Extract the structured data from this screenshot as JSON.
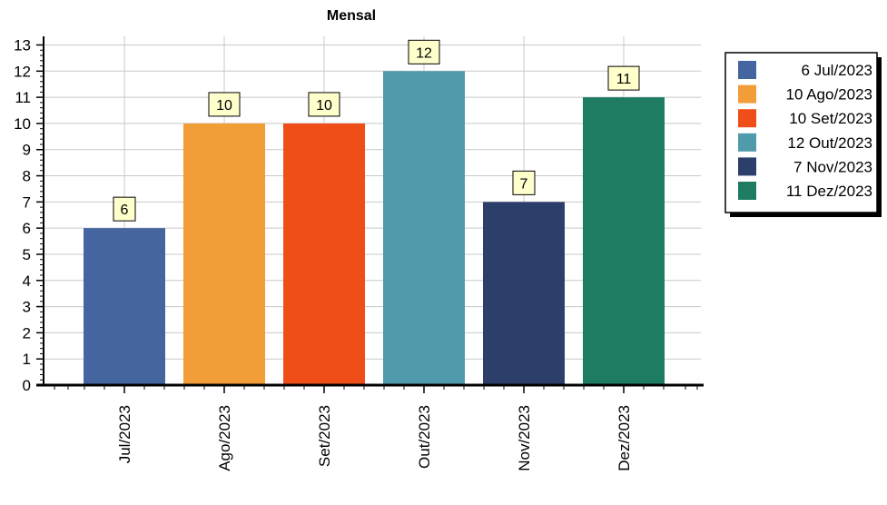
{
  "chart_data": {
    "type": "bar",
    "title": "Mensal",
    "categories": [
      "Jul/2023",
      "Ago/2023",
      "Set/2023",
      "Out/2023",
      "Nov/2023",
      "Dez/2023"
    ],
    "values": [
      6,
      10,
      10,
      12,
      7,
      11
    ],
    "colors": [
      "#4565a0",
      "#f29e38",
      "#f04e18",
      "#4f9bab",
      "#2c3e6a",
      "#1e7c62"
    ],
    "legend": [
      "6 Jul/2023",
      "10 Ago/2023",
      "10 Set/2023",
      "12 Out/2023",
      "7 Nov/2023",
      "11 Dez/2023"
    ],
    "legend_placement": "top-right",
    "ylim": [
      0,
      13
    ],
    "yticks": [
      0,
      1,
      2,
      3,
      4,
      5,
      6,
      7,
      8,
      9,
      10,
      11,
      12,
      13
    ],
    "grid": true,
    "data_labels": true,
    "xlabel": "",
    "ylabel": ""
  }
}
